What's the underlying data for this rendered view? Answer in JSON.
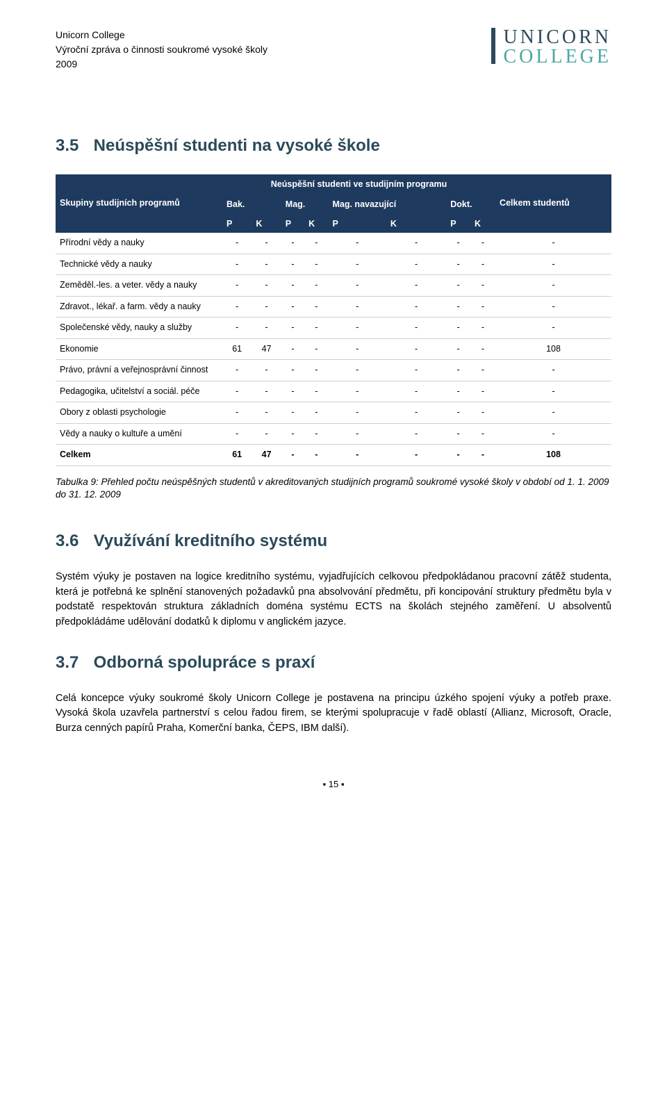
{
  "header": {
    "line1": "Unicorn College",
    "line2": "Výroční zpráva o činnosti soukromé vysoké školy",
    "line3": "2009",
    "logo_word1": "UNICORN",
    "logo_word2": "COLLEGE"
  },
  "section_3_5": {
    "num": "3.5",
    "title": "Neúspěšní studenti na vysoké škole"
  },
  "table": {
    "type": "table",
    "header_bg": "#1f3a5f",
    "header_fg": "#ffffff",
    "row_border": "#d0d0d0",
    "corner_label": "Skupiny studijních programů",
    "super_header": "Neúspěšní studenti ve studijním programu",
    "col_groups": [
      "Bak.",
      "Mag.",
      "Mag. navazující",
      "Dokt."
    ],
    "total_label": "Celkem studentů",
    "sub_cols": [
      "P",
      "K",
      "P",
      "K",
      "P",
      "K",
      "P",
      "K"
    ],
    "rows": [
      {
        "label": "Přírodní vědy a nauky",
        "cells": [
          "-",
          "-",
          "-",
          "-",
          "-",
          "-",
          "-",
          "-",
          "-"
        ]
      },
      {
        "label": "Technické vědy a nauky",
        "cells": [
          "-",
          "-",
          "-",
          "-",
          "-",
          "-",
          "-",
          "-",
          "-"
        ]
      },
      {
        "label": "Zeměděl.-les. a veter. vědy a nauky",
        "cells": [
          "-",
          "-",
          "-",
          "-",
          "-",
          "-",
          "-",
          "-",
          "-"
        ]
      },
      {
        "label": "Zdravot., lékař. a farm. vědy a nauky",
        "cells": [
          "-",
          "-",
          "-",
          "-",
          "-",
          "-",
          "-",
          "-",
          "-"
        ]
      },
      {
        "label": "Společenské vědy, nauky a služby",
        "cells": [
          "-",
          "-",
          "-",
          "-",
          "-",
          "-",
          "-",
          "-",
          "-"
        ]
      },
      {
        "label": "Ekonomie",
        "cells": [
          "61",
          "47",
          "-",
          "-",
          "-",
          "-",
          "-",
          "-",
          "108"
        ]
      },
      {
        "label": "Právo, právní a veřejnosprávní činnost",
        "cells": [
          "-",
          "-",
          "-",
          "-",
          "-",
          "-",
          "-",
          "-",
          "-"
        ]
      },
      {
        "label": "Pedagogika, učitelství a sociál. péče",
        "cells": [
          "-",
          "-",
          "-",
          "-",
          "-",
          "-",
          "-",
          "-",
          "-"
        ]
      },
      {
        "label": "Obory z oblasti psychologie",
        "cells": [
          "-",
          "-",
          "-",
          "-",
          "-",
          "-",
          "-",
          "-",
          "-"
        ]
      },
      {
        "label": "Vědy a nauky o kultuře a umění",
        "cells": [
          "-",
          "-",
          "-",
          "-",
          "-",
          "-",
          "-",
          "-",
          "-"
        ]
      },
      {
        "label": "Celkem",
        "cells": [
          "61",
          "47",
          "-",
          "-",
          "-",
          "-",
          "-",
          "-",
          "108"
        ]
      }
    ]
  },
  "caption": "Tabulka 9: Přehled počtu neúspěšných studentů v akreditovaných studijních programů soukromé vysoké školy v období od 1. 1. 2009 do 31. 12. 2009",
  "section_3_6": {
    "num": "3.6",
    "title": "Využívání kreditního systému",
    "body": "Systém výuky je postaven na logice kreditního systému, vyjadřujících celkovou předpokládanou pracovní zátěž studenta, která je potřebná ke splnění stanovených požadavků pna absolvování předmětu, při koncipování struktury předmětu byla v podstatě respektován struktura základních doména systému ECTS na školách stejného zaměření. U absolventů předpokládáme udělování dodatků k diplomu v anglickém jazyce."
  },
  "section_3_7": {
    "num": "3.7",
    "title": "Odborná spolupráce s praxí",
    "body": "Celá koncepce výuky soukromé školy Unicorn College je postavena na principu úzkého spojení výuky a potřeb praxe. Vysoká škola uzavřela partnerství s celou řadou firem, se kterými spolupracuje v řadě oblastí (Allianz, Microsoft, Oracle, Burza cenných papírů Praha, Komerční banka, ČEPS, IBM další)."
  },
  "page_number": "15",
  "colors": {
    "heading": "#2b4a5a",
    "logo_teal": "#4aa8a0",
    "table_header_bg": "#1f3a5f"
  }
}
